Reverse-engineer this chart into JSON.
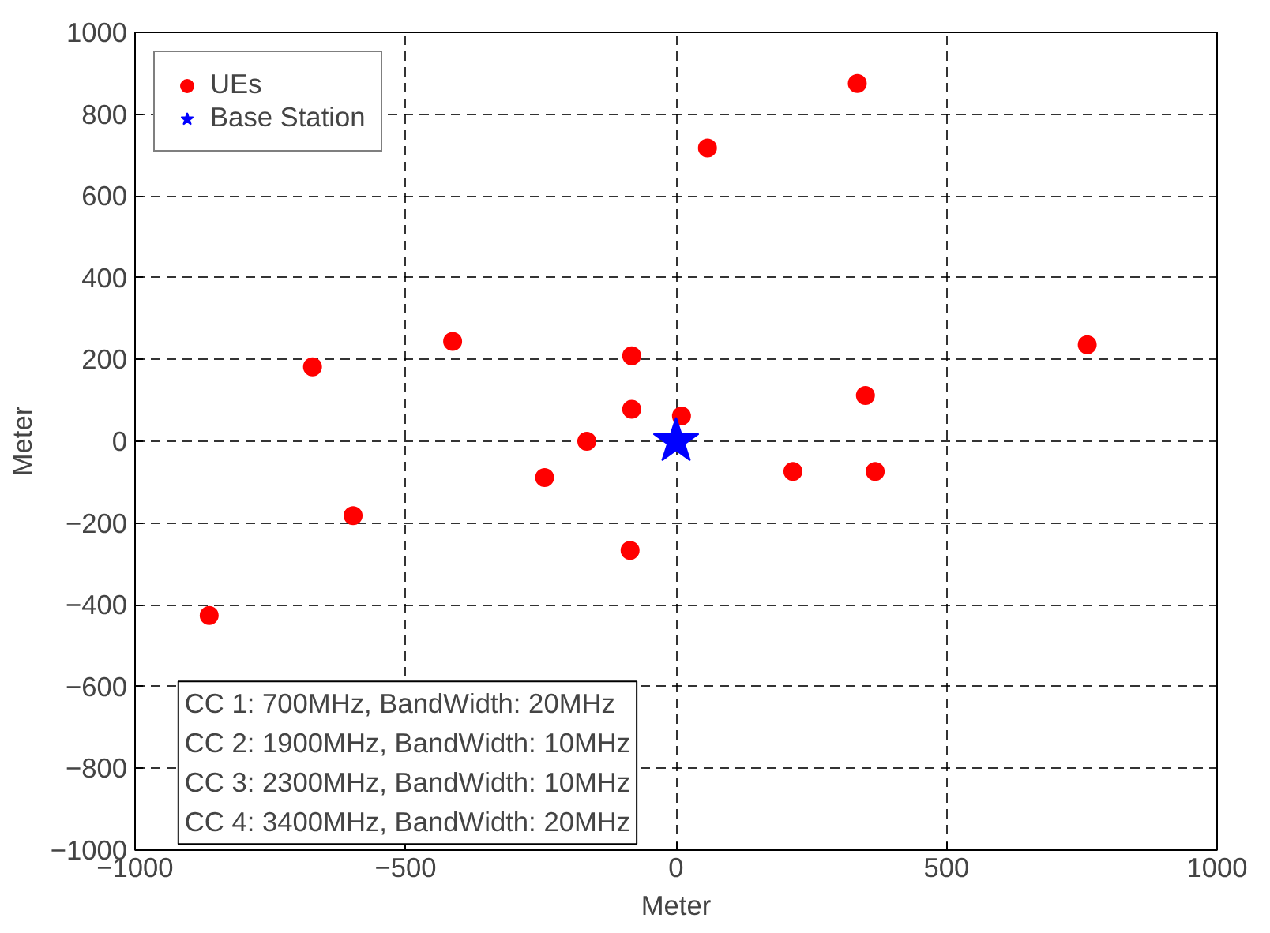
{
  "chart_data": {
    "type": "scatter",
    "xlabel": "Meter",
    "ylabel": "Meter",
    "xlim": [
      -1000,
      1000
    ],
    "ylim": [
      -1000,
      1000
    ],
    "xticks": [
      -1000,
      -500,
      0,
      500,
      1000
    ],
    "yticks": [
      -1000,
      -800,
      -600,
      -400,
      -200,
      0,
      200,
      400,
      600,
      800,
      1000
    ],
    "grid": true,
    "legend": "top left",
    "series": [
      {
        "name": "UEs",
        "color": "#ff0000",
        "marker": "circle",
        "x": [
          335,
          58,
          760,
          350,
          368,
          216,
          10,
          -82,
          -82,
          -413,
          -672,
          -597,
          -863,
          -243,
          -165,
          -85
        ],
        "values": [
          875,
          717,
          236,
          112,
          -74,
          -74,
          62,
          78,
          209,
          244,
          182,
          -182,
          -426,
          -89,
          0,
          -267
        ]
      },
      {
        "name": "Base Station",
        "color": "#0000ff",
        "marker": "star",
        "x": [
          0
        ],
        "values": [
          0
        ]
      }
    ],
    "annotations": [
      "CC 1: 700MHz, BandWidth: 20MHz\nCC 2: 1900MHz, BandWidth: 10MHz\nCC 3: 2300MHz, BandWidth: 10MHz\nCC 4: 3400MHz, BandWidth: 20MHz"
    ]
  }
}
